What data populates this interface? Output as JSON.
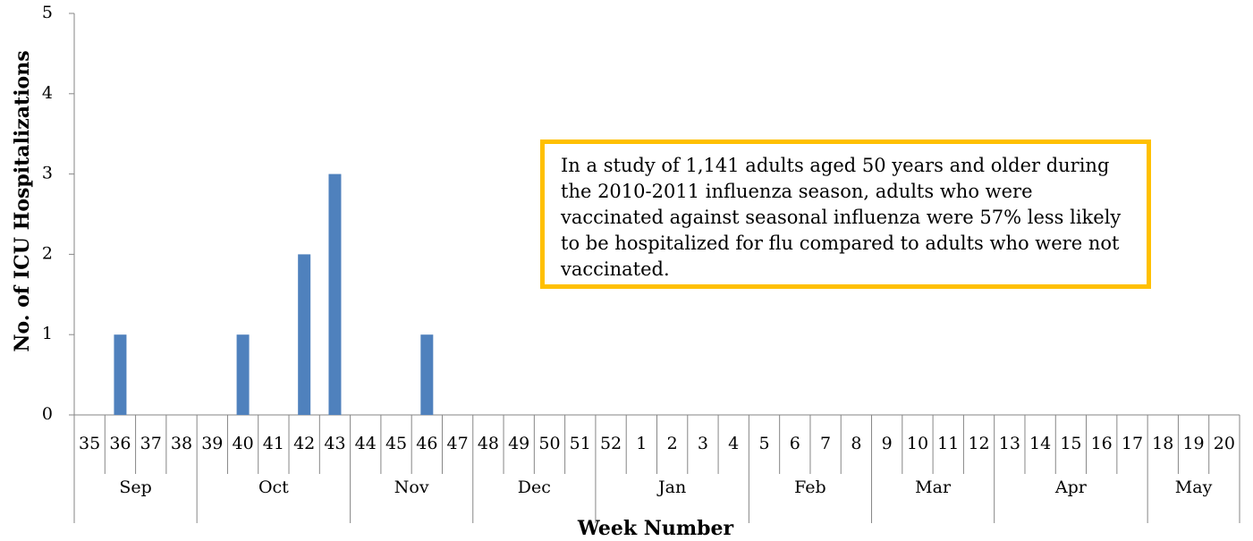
{
  "chart_data": {
    "type": "bar",
    "y_label": "No. of ICU Hospitalizations",
    "x_label": "Week Number",
    "annotation": "In a study of 1,141 adults aged 50 years and older during the 2010-2011 influenza season, adults who were vaccinated against seasonal influenza were 57% less likely to be hospitalized for flu compared to adults who were not vaccinated.",
    "color": "#4f81bd",
    "ylim": [
      0,
      5
    ],
    "yticks": [
      0,
      1,
      2,
      3,
      4,
      5
    ],
    "groups": [
      {
        "label": "Sep",
        "categories": [
          "35",
          "36",
          "37",
          "38"
        ],
        "values": [
          0,
          1,
          0,
          0
        ]
      },
      {
        "label": "Oct",
        "categories": [
          "39",
          "40",
          "41",
          "42",
          "43"
        ],
        "values": [
          0,
          1,
          0,
          2,
          3
        ]
      },
      {
        "label": "Nov",
        "categories": [
          "44",
          "45",
          "46",
          "47"
        ],
        "values": [
          0,
          0,
          1,
          0
        ]
      },
      {
        "label": "Dec",
        "categories": [
          "48",
          "49",
          "50",
          "51"
        ],
        "values": [
          0,
          0,
          0,
          0
        ]
      },
      {
        "label": "Jan",
        "categories": [
          "52",
          "1",
          "2",
          "3",
          "4"
        ],
        "values": [
          0,
          0,
          0,
          0,
          0
        ]
      },
      {
        "label": "Feb",
        "categories": [
          "5",
          "6",
          "7",
          "8"
        ],
        "values": [
          0,
          0,
          0,
          0
        ]
      },
      {
        "label": "Mar",
        "categories": [
          "9",
          "10",
          "11",
          "12"
        ],
        "values": [
          0,
          0,
          0,
          0
        ]
      },
      {
        "label": "Apr",
        "categories": [
          "13",
          "14",
          "15",
          "16",
          "17"
        ],
        "values": [
          0,
          0,
          0,
          0,
          0
        ]
      },
      {
        "label": "May",
        "categories": [
          "18",
          "19",
          "20"
        ],
        "values": [
          0,
          0,
          0
        ]
      }
    ]
  }
}
